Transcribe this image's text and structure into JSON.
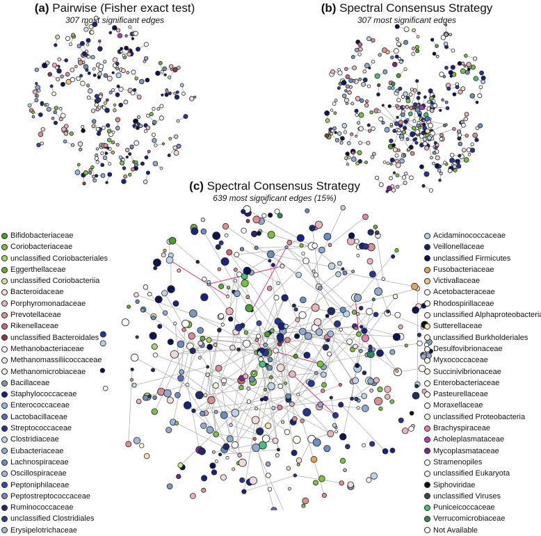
{
  "panels": {
    "a": {
      "letter": "(a)",
      "title": "Pairwise (Fisher exact test)",
      "subtitle": "307 most significant edges"
    },
    "b": {
      "letter": "(b)",
      "title": "Spectral Consensus Strategy",
      "subtitle": "307 most significant edges"
    },
    "c": {
      "letter": "(c)",
      "title": "Spectral Consensus Strategy",
      "subtitle": "639 most significant edges (15%)"
    }
  },
  "legend_left": [
    {
      "label": "Bifidobacteriaceae",
      "color": "#4aa02c"
    },
    {
      "label": "Coriobacteriaceae",
      "color": "#7ac143"
    },
    {
      "label": "unclassified Coriobacteriales",
      "color": "#a4d65e"
    },
    {
      "label": "Eggerthellaceae",
      "color": "#6fa83a"
    },
    {
      "label": "unclassified Coriobacteriia",
      "color": "#c6e59a"
    },
    {
      "label": "Bacteroidaceae",
      "color": "#f2d9d9"
    },
    {
      "label": "Porphyromonadaceae",
      "color": "#e8b4b8"
    },
    {
      "label": "Prevotellaceae",
      "color": "#d98f94"
    },
    {
      "label": "Rikenellaceae",
      "color": "#c46b73"
    },
    {
      "label": "unclassified Bacteroidales",
      "color": "#8e3b3f"
    },
    {
      "label": "Methanobacteriaceae",
      "color": "#f8f0f0"
    },
    {
      "label": "Methanomassiliicoccaceae",
      "color": "#e6e6e6"
    },
    {
      "label": "Methanomicrobiaceae",
      "color": "#f0e8f0"
    },
    {
      "label": "Bacillaceae",
      "color": "#7f98b8"
    },
    {
      "label": "Staphylococcaceae",
      "color": "#1a237e"
    },
    {
      "label": "Enterococcaceae",
      "color": "#93b8d8"
    },
    {
      "label": "Lactobacillaceae",
      "color": "#5c6bc0"
    },
    {
      "label": "Streptococcaceae",
      "color": "#283593"
    },
    {
      "label": "Clostridiaceae",
      "color": "#bcd4ea"
    },
    {
      "label": "Eubacteriaceae",
      "color": "#8fa9cf"
    },
    {
      "label": "Lachnospiraceae",
      "color": "#6b8fbf"
    },
    {
      "label": "Oscillospiraceae",
      "color": "#a3b8d9"
    },
    {
      "label": "Peptoniphilaceae",
      "color": "#3949ab"
    },
    {
      "label": "Peptostreptococcaceae",
      "color": "#7986cb"
    },
    {
      "label": "Ruminococcaceae",
      "color": "#1f2a6b"
    },
    {
      "label": "unclassified Clostridiales",
      "color": "#2c3e8a"
    },
    {
      "label": "Erysipelotrichaceae",
      "color": "#9fb7d6"
    }
  ],
  "legend_right": [
    {
      "label": "Acidaminococcaceae",
      "color": "#b3cde3"
    },
    {
      "label": "Veillonellaceae",
      "color": "#14206e"
    },
    {
      "label": "unclassified Firmicutes",
      "color": "#0d1550"
    },
    {
      "label": "Fusobacteriaceae",
      "color": "#d9a860"
    },
    {
      "label": "Victivallaceae",
      "color": "#e9c98a"
    },
    {
      "label": "Acetobacteraceae",
      "color": "#fafafa"
    },
    {
      "label": "Rhodospirillaceae",
      "color": "#f5f5f5"
    },
    {
      "label": "unclassified Alphaproteobacteria",
      "color": "#efefef"
    },
    {
      "label": "Sutterellaceae",
      "color": "#f4e3b0"
    },
    {
      "label": "unclassified Burkholderiales",
      "color": "#f8f4e0"
    },
    {
      "label": "Desulfovibrionaceae",
      "color": "#ffffff"
    },
    {
      "label": "Myxococcaceae",
      "color": "#fdfbe8"
    },
    {
      "label": "Succinivibrionaceae",
      "color": "#fbf6d0"
    },
    {
      "label": "Enterobacteriaceae",
      "color": "#f7f7f7"
    },
    {
      "label": "Pasteurellaceae",
      "color": "#fffef0"
    },
    {
      "label": "Moraxellaceae",
      "color": "#f2f2f2"
    },
    {
      "label": "unclassified Proteobacteria",
      "color": "#f6f0d8"
    },
    {
      "label": "Brachyspiraceae",
      "color": "#e07fa8"
    },
    {
      "label": "Acholeplasmataceae",
      "color": "#c03bb0"
    },
    {
      "label": "Mycoplasmataceae",
      "color": "#7a2a8c"
    },
    {
      "label": "Stramenopiles",
      "color": "#ffffff"
    },
    {
      "label": "unclassified Eukaryota",
      "color": "#f0f0f0"
    },
    {
      "label": "Siphoviridae",
      "color": "#111111"
    },
    {
      "label": "unclassified Viruses",
      "color": "#444444"
    },
    {
      "label": "Puniceicoccaceae",
      "color": "#4cbf7a"
    },
    {
      "label": "Verrucomicrobiaceae",
      "color": "#2e8b57"
    },
    {
      "label": "Not Available",
      "color": "#ffffff"
    }
  ]
}
